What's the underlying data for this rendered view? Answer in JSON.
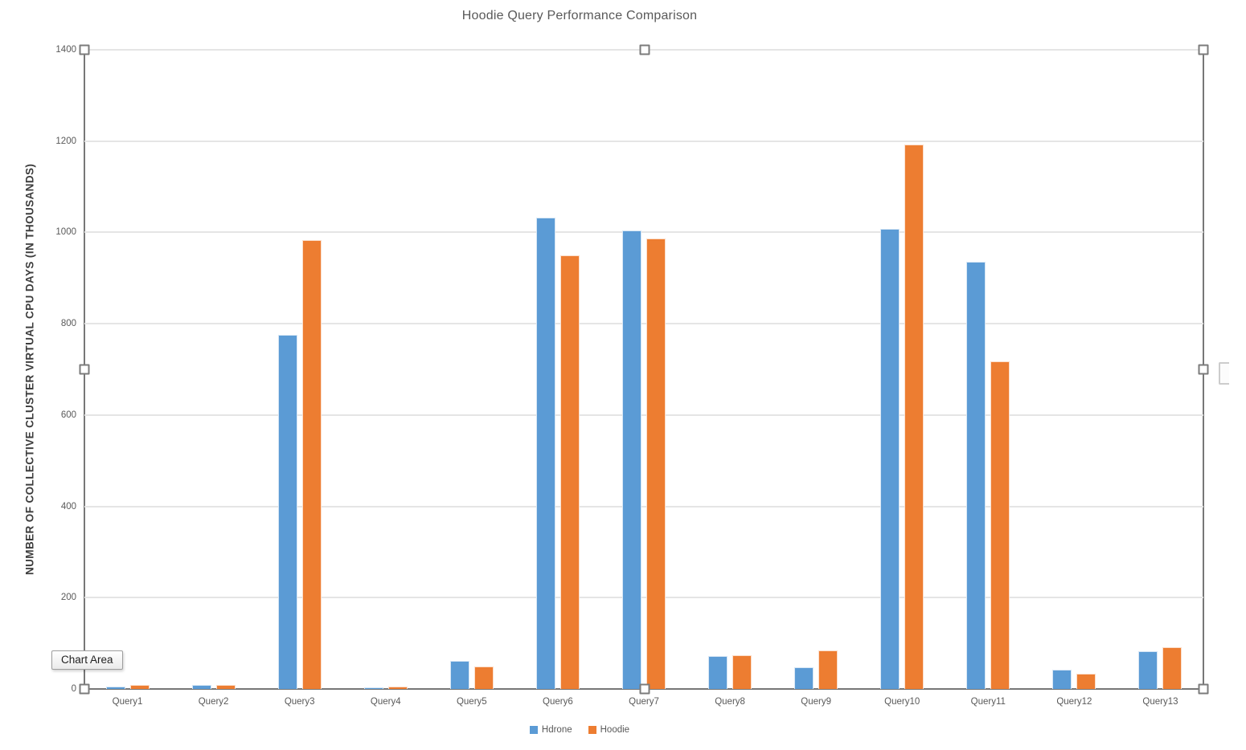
{
  "chart_data": {
    "type": "bar",
    "title": "Hoodie Query Performance Comparison",
    "xlabel": "",
    "ylabel": "NUMBER OF COLLECTIVE CLUSTER VIRTUAL CPU DAYS (IN THOUSANDS)",
    "categories": [
      "Query1",
      "Query2",
      "Query3",
      "Query4",
      "Query5",
      "Query6",
      "Query7",
      "Query8",
      "Query9",
      "Query10",
      "Query11",
      "Query12",
      "Query13"
    ],
    "series": [
      {
        "name": "Hdrone",
        "color": "#5B9BD5",
        "values": [
          5,
          9,
          775,
          4,
          62,
          1032,
          1005,
          72,
          48,
          1007,
          935,
          42,
          82
        ]
      },
      {
        "name": "Hoodie",
        "color": "#ED7D31",
        "values": [
          8,
          8,
          983,
          5,
          50,
          950,
          986,
          74,
          85,
          1193,
          717,
          33,
          92
        ]
      }
    ],
    "ylim": [
      0,
      1400
    ],
    "yticks": [
      0,
      200,
      400,
      600,
      800,
      1000,
      1200,
      1400
    ],
    "grid": true,
    "legend_position": "bottom"
  },
  "tooltip": {
    "label": "Chart Area"
  },
  "selection": {
    "handle_count": 8
  },
  "colors": {
    "hdrone": "#5B9BD5",
    "hoodie": "#ED7D31",
    "gridline": "#e5e5e5",
    "axis": "#777777",
    "text": "#595959"
  }
}
